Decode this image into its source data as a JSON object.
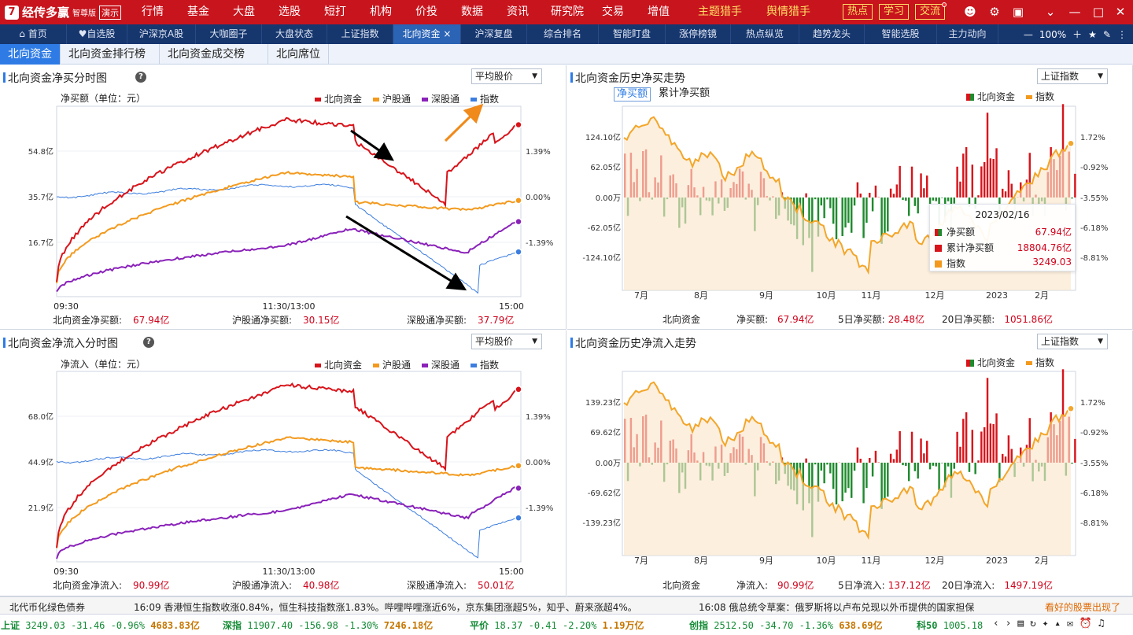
{
  "app": {
    "logo_text": "经传多赢",
    "edition": "智尊版",
    "demo": "演示"
  },
  "menu": [
    "行情",
    "基金",
    "大盘",
    "选股",
    "短打",
    "机构",
    "价投",
    "数据",
    "资讯",
    "研究院",
    "交易",
    "增值",
    "主题猎手",
    "舆情猎手"
  ],
  "top_buttons": [
    "热点",
    "学习",
    "交流"
  ],
  "tabs": [
    "首页",
    "自选股",
    "沪深京A股",
    "大咖圈子",
    "大盘状态",
    "上证指数",
    "北向资金",
    "沪深复盘",
    "综合排名",
    "智能盯盘",
    "涨停榜镜",
    "热点纵览",
    "趋势龙头",
    "智能选股",
    "主力动向"
  ],
  "active_tab": 6,
  "zoom": "100%",
  "subtabs": [
    "北向资金",
    "北向资金排行榜",
    "北向资金成交榜",
    "北向席位"
  ],
  "colors": {
    "north": "#d8141b",
    "hu": "#f39a1e",
    "shen": "#8a22b9",
    "index": "#3c7ddf",
    "netbuy_pos": "#d8141b",
    "netbuy_neg": "#1f8a2e"
  },
  "panel1": {
    "title": "北向资金净买分时图",
    "select": "平均股价",
    "unit": "净买额（单位：元）",
    "legend": [
      "北向资金",
      "沪股通",
      "深股通",
      "指数"
    ],
    "yleft": [
      "54.8亿",
      "35.7亿",
      "16.7亿"
    ],
    "yright": [
      "1.39%",
      "0.00%",
      "-1.39%"
    ],
    "x": [
      "09:30",
      "11:30/13:00",
      "15:00"
    ],
    "footer": [
      {
        "label": "北向资金净买额:",
        "value": "67.94亿"
      },
      {
        "label": "沪股通净买额:",
        "value": "30.15亿"
      },
      {
        "label": "深股通净买额:",
        "value": "37.79亿"
      }
    ]
  },
  "panel2": {
    "title": "北向资金净流入分时图",
    "select": "平均股价",
    "unit": "净流入（单位：元）",
    "legend": [
      "北向资金",
      "沪股通",
      "深股通",
      "指数"
    ],
    "yleft": [
      "68.0亿",
      "44.9亿",
      "21.9亿"
    ],
    "yright": [
      "1.39%",
      "0.00%",
      "-1.39%"
    ],
    "x": [
      "09:30",
      "11:30/13:00",
      "15:00"
    ],
    "footer": [
      {
        "label": "北向资金净流入:",
        "value": "90.99亿"
      },
      {
        "label": "沪股通净流入:",
        "value": "40.98亿"
      },
      {
        "label": "深股通净流入:",
        "value": "50.01亿"
      }
    ]
  },
  "panel3": {
    "title": "北向资金历史净买走势",
    "select": "上证指数",
    "toggle": [
      "净买额",
      "累计净买额"
    ],
    "legend": [
      "北向资金",
      "指数"
    ],
    "yleft": [
      "124.10亿",
      "62.05亿",
      "0.00万",
      "-62.05亿",
      "-124.10亿"
    ],
    "yright": [
      "1.72%",
      "-0.92%",
      "-3.55%",
      "-6.18%",
      "-8.81%"
    ],
    "x": [
      "7月",
      "8月",
      "9月",
      "10月",
      "11月",
      "12月",
      "2023",
      "2月"
    ],
    "tooltip": {
      "date": "2023/02/16",
      "rows": [
        {
          "label": "净买额",
          "value": "67.94亿"
        },
        {
          "label": "累计净买额",
          "value": "18804.76亿"
        },
        {
          "label": "指数",
          "value": "3249.03"
        }
      ]
    },
    "footer": {
      "name": "北向资金",
      "items": [
        {
          "label": "净买额:",
          "value": "67.94亿"
        },
        {
          "label": "5日净买额:",
          "value": "28.48亿"
        },
        {
          "label": "20日净买额:",
          "value": "1051.86亿"
        }
      ]
    }
  },
  "panel4": {
    "title": "北向资金历史净流入走势",
    "select": "上证指数",
    "legend": [
      "北向资金",
      "指数"
    ],
    "yleft": [
      "139.23亿",
      "69.62亿",
      "0.00万",
      "-69.62亿",
      "-139.23亿"
    ],
    "yright": [
      "1.72%",
      "-0.92%",
      "-3.55%",
      "-6.18%",
      "-8.81%"
    ],
    "x": [
      "7月",
      "8月",
      "9月",
      "10月",
      "11月",
      "12月",
      "2023",
      "2月"
    ],
    "footer": {
      "name": "北向资金",
      "items": [
        {
          "label": "净流入:",
          "value": "90.99亿"
        },
        {
          "label": "5日净流入:",
          "value": "137.12亿"
        },
        {
          "label": "20日净流入:",
          "value": "1497.19亿"
        }
      ]
    }
  },
  "news": [
    "北代币化绿色债券",
    "16:09  香港恒生指数收涨0.84%，恒生科技指数涨1.83%。哔哩哔哩涨近6%，京东集团涨超5%，知乎、蔚来涨超4%。",
    "16:08  俄总统令草案：俄罗斯将以卢布兑现以外币提供的国家担保",
    "看好的股票出现了"
  ],
  "ticker": [
    {
      "name": "上证",
      "price": "3249.03",
      "chg": "-31.46",
      "pct": "-0.96%",
      "amt": "4683.83亿"
    },
    {
      "name": "深指",
      "price": "11907.40",
      "chg": "-156.98",
      "pct": "-1.30%",
      "amt": "7246.18亿"
    },
    {
      "name": "平价",
      "price": "18.37",
      "chg": "-0.41",
      "pct": "-2.20%",
      "amt": "1.19万亿"
    },
    {
      "name": "创指",
      "price": "2512.50",
      "chg": "-34.70",
      "pct": "-1.36%",
      "amt": "638.69亿"
    },
    {
      "name": "科50",
      "price": "1005.18",
      "chg": "",
      "pct": "",
      "amt": ""
    }
  ]
}
